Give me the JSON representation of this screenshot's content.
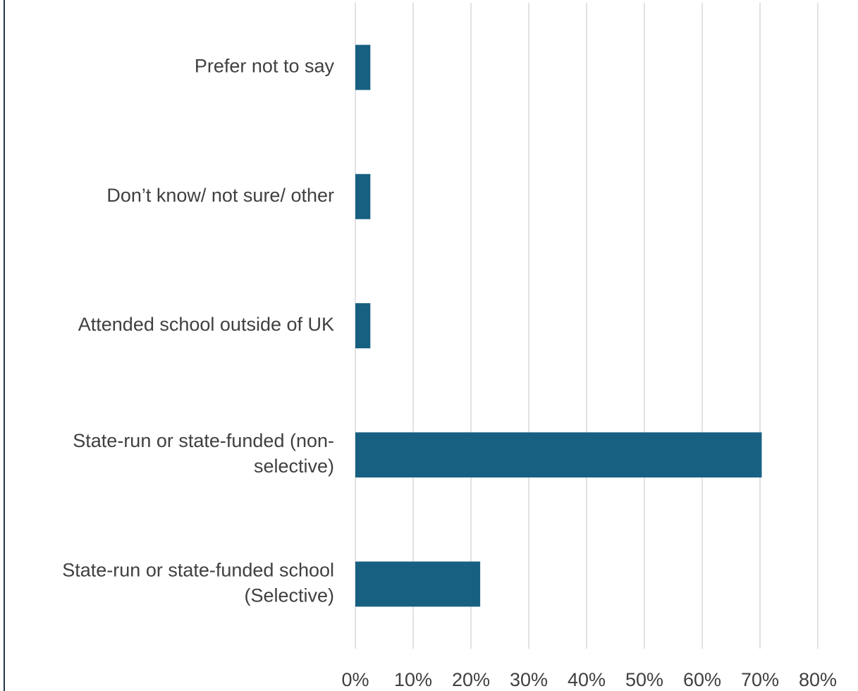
{
  "chart_data": {
    "type": "bar",
    "orientation": "horizontal",
    "categories": [
      "Prefer not to say",
      "Don’t know/ not sure/ other",
      "Attended school outside of UK",
      "State-run or state-funded (non-selective)",
      "State-run or state-funded school (Selective)"
    ],
    "category_label_lines": [
      [
        "Prefer not to say"
      ],
      [
        "Don’t know/ not sure/ other"
      ],
      [
        "Attended school outside of UK"
      ],
      [
        "State-run or state-funded (non-",
        "selective)"
      ],
      [
        "State-run or state-funded school",
        "(Selective)"
      ]
    ],
    "values": [
      2.6,
      2.6,
      2.6,
      70.3,
      21.6
    ],
    "value_unit": "%",
    "xlim": [
      0,
      80
    ],
    "x_ticks": [
      0,
      10,
      20,
      30,
      40,
      50,
      60,
      70,
      80
    ],
    "x_tick_labels": [
      "0%",
      "10%",
      "20%",
      "30%",
      "40%",
      "50%",
      "60%",
      "70%",
      "80%"
    ],
    "grid": "vertical",
    "legend": "none",
    "colors": {
      "bar": "#176082",
      "grid": "#d9d9d9",
      "text": "#404040",
      "frame": "#1f3a4a"
    }
  }
}
